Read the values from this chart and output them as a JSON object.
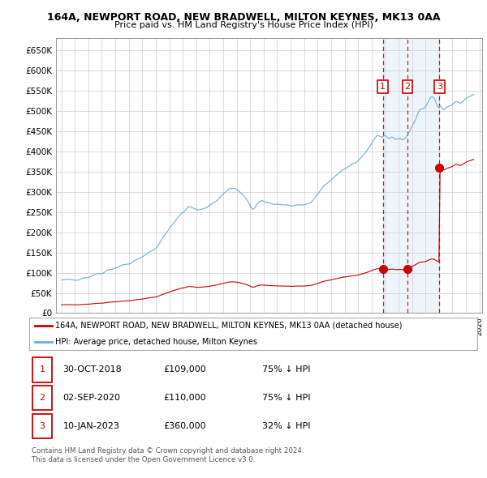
{
  "title1": "164A, NEWPORT ROAD, NEW BRADWELL, MILTON KEYNES, MK13 0AA",
  "title2": "Price paid vs. HM Land Registry's House Price Index (HPI)",
  "ylim": [
    0,
    680000
  ],
  "yticks": [
    0,
    50000,
    100000,
    150000,
    200000,
    250000,
    300000,
    350000,
    400000,
    450000,
    500000,
    550000,
    600000,
    650000
  ],
  "ytick_labels": [
    "£0",
    "£50K",
    "£100K",
    "£150K",
    "£200K",
    "£250K",
    "£300K",
    "£350K",
    "£400K",
    "£450K",
    "£500K",
    "£550K",
    "£600K",
    "£650K"
  ],
  "hpi_color": "#6baed6",
  "price_color": "#cc0000",
  "vline_color": "#cc0000",
  "shade_color": "#ddeeff",
  "grid_color": "#cccccc",
  "bg_color": "#ffffff",
  "legend_label_red": "164A, NEWPORT ROAD, NEW BRADWELL, MILTON KEYNES, MK13 0AA (detached house)",
  "legend_label_blue": "HPI: Average price, detached house, Milton Keynes",
  "sale1_date": 2018.83,
  "sale1_price": 109000,
  "sale1_label": "1",
  "sale2_date": 2020.67,
  "sale2_price": 110000,
  "sale2_label": "2",
  "sale3_date": 2023.03,
  "sale3_price": 360000,
  "sale3_label": "3",
  "xmin": 1995.0,
  "xmax": 2025.7,
  "footer": "Contains HM Land Registry data © Crown copyright and database right 2024.\nThis data is licensed under the Open Government Licence v3.0.",
  "table_data": [
    [
      "1",
      "30-OCT-2018",
      "£109,000",
      "75% ↓ HPI"
    ],
    [
      "2",
      "02-SEP-2020",
      "£110,000",
      "75% ↓ HPI"
    ],
    [
      "3",
      "10-JAN-2023",
      "£360,000",
      "32% ↓ HPI"
    ]
  ]
}
